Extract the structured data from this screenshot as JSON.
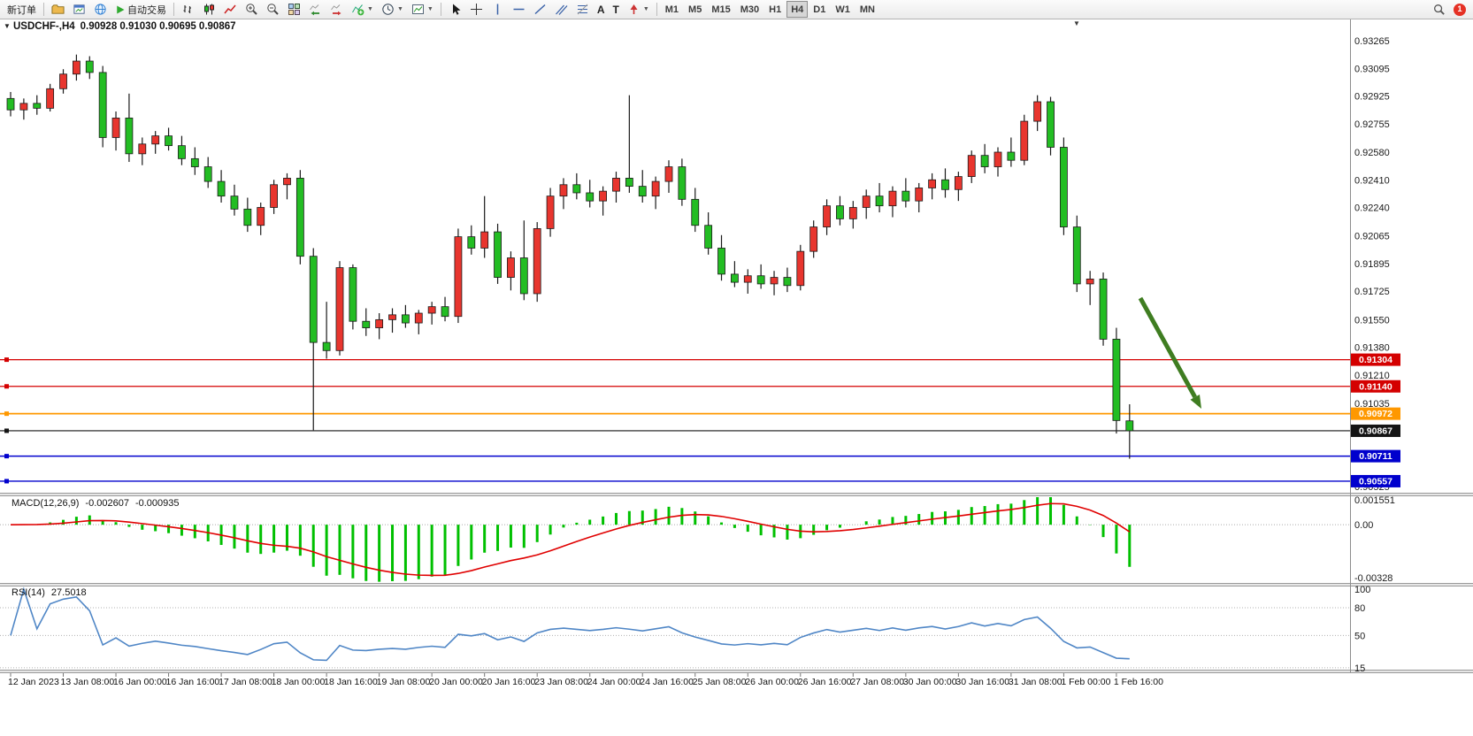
{
  "toolbar": {
    "new_order_label": "新订单",
    "autotrade_label": "自动交易",
    "text_tool_label": "A",
    "label_tool_label": "T",
    "timeframes": [
      "M1",
      "M5",
      "M15",
      "M30",
      "H1",
      "H4",
      "D1",
      "W1",
      "MN"
    ],
    "active_timeframe": "H4",
    "notification_count": "1"
  },
  "chart": {
    "symbol_period": "USDCHF-,H4",
    "ohlc_text": "0.90928 0.91030 0.90695 0.90867"
  },
  "chart_data": {
    "type": "candlestick",
    "symbol": "USDCHF-",
    "timeframe": "H4",
    "current_bar": {
      "open": 0.90928,
      "high": 0.9103,
      "low": 0.90695,
      "close": 0.90867
    },
    "colors": {
      "bull": "#e8352e",
      "bear": "#23bd23",
      "wick": "#1a1a1a"
    },
    "price_axis_ticks": [
      "0.93265",
      "0.93095",
      "0.92925",
      "0.92755",
      "0.92580",
      "0.92410",
      "0.92240",
      "0.92065",
      "0.91895",
      "0.91725",
      "0.91550",
      "0.91380",
      "0.91210",
      "0.91035",
      "0.90865",
      "0.90695",
      "0.90525"
    ],
    "time_label_step": 4,
    "time_labels": [
      "12 Jan 2023",
      "13 Jan 08:00",
      "16 Jan 00:00",
      "16 Jan 16:00",
      "17 Jan 08:00",
      "18 Jan 00:00",
      "18 Jan 16:00",
      "19 Jan 08:00",
      "20 Jan 00:00",
      "20 Jan 16:00",
      "23 Jan 08:00",
      "24 Jan 00:00",
      "24 Jan 16:00",
      "25 Jan 08:00",
      "26 Jan 00:00",
      "26 Jan 16:00",
      "27 Jan 08:00",
      "30 Jan 00:00",
      "30 Jan 16:00",
      "31 Jan 08:00",
      "1 Feb 00:00",
      "1 Feb 16:00"
    ],
    "candles": [
      [
        0.9291,
        0.9295,
        0.928,
        0.9284
      ],
      [
        0.9284,
        0.9291,
        0.9278,
        0.9288
      ],
      [
        0.9288,
        0.9293,
        0.9281,
        0.9285
      ],
      [
        0.9285,
        0.93,
        0.9283,
        0.9297
      ],
      [
        0.9297,
        0.9309,
        0.9294,
        0.9306
      ],
      [
        0.9306,
        0.9318,
        0.9302,
        0.9314
      ],
      [
        0.9314,
        0.9317,
        0.9303,
        0.9307
      ],
      [
        0.9307,
        0.9311,
        0.9261,
        0.9267
      ],
      [
        0.9267,
        0.9283,
        0.9259,
        0.9279
      ],
      [
        0.9279,
        0.9294,
        0.9252,
        0.9257
      ],
      [
        0.9257,
        0.9267,
        0.925,
        0.9263
      ],
      [
        0.9263,
        0.9271,
        0.9257,
        0.9268
      ],
      [
        0.9268,
        0.9273,
        0.9259,
        0.9262
      ],
      [
        0.9262,
        0.9268,
        0.925,
        0.9254
      ],
      [
        0.9254,
        0.9261,
        0.9244,
        0.9249
      ],
      [
        0.9249,
        0.9255,
        0.9236,
        0.924
      ],
      [
        0.924,
        0.9247,
        0.9227,
        0.9231
      ],
      [
        0.9231,
        0.9238,
        0.9219,
        0.9223
      ],
      [
        0.9223,
        0.923,
        0.9209,
        0.9213
      ],
      [
        0.9213,
        0.9227,
        0.9207,
        0.9224
      ],
      [
        0.9224,
        0.9241,
        0.922,
        0.9238
      ],
      [
        0.9238,
        0.9245,
        0.9229,
        0.9242
      ],
      [
        0.9242,
        0.9247,
        0.9189,
        0.9194
      ],
      [
        0.9194,
        0.9199,
        0.9087,
        0.9141
      ],
      [
        0.9141,
        0.9166,
        0.9131,
        0.9136
      ],
      [
        0.9136,
        0.9191,
        0.9133,
        0.9187
      ],
      [
        0.9187,
        0.9189,
        0.9149,
        0.9154
      ],
      [
        0.9154,
        0.9162,
        0.9145,
        0.915
      ],
      [
        0.915,
        0.9159,
        0.9143,
        0.9155
      ],
      [
        0.9155,
        0.9162,
        0.9147,
        0.9158
      ],
      [
        0.9158,
        0.9164,
        0.915,
        0.9153
      ],
      [
        0.9153,
        0.9161,
        0.9146,
        0.9159
      ],
      [
        0.9159,
        0.9166,
        0.9152,
        0.9163
      ],
      [
        0.9163,
        0.9169,
        0.9154,
        0.9157
      ],
      [
        0.9157,
        0.9211,
        0.9153,
        0.9206
      ],
      [
        0.9206,
        0.9213,
        0.9195,
        0.9199
      ],
      [
        0.9199,
        0.9231,
        0.9193,
        0.9209
      ],
      [
        0.9209,
        0.9214,
        0.9177,
        0.9181
      ],
      [
        0.9181,
        0.9197,
        0.9173,
        0.9193
      ],
      [
        0.9193,
        0.9216,
        0.9167,
        0.9171
      ],
      [
        0.9171,
        0.9215,
        0.9166,
        0.9211
      ],
      [
        0.9211,
        0.9236,
        0.9206,
        0.9231
      ],
      [
        0.9231,
        0.9242,
        0.9223,
        0.9238
      ],
      [
        0.9238,
        0.9245,
        0.9229,
        0.9233
      ],
      [
        0.9233,
        0.9241,
        0.9224,
        0.9228
      ],
      [
        0.9228,
        0.9237,
        0.9219,
        0.9234
      ],
      [
        0.9234,
        0.9246,
        0.9227,
        0.9242
      ],
      [
        0.9242,
        0.9293,
        0.9233,
        0.9237
      ],
      [
        0.9237,
        0.9247,
        0.9227,
        0.9231
      ],
      [
        0.9231,
        0.9243,
        0.9223,
        0.924
      ],
      [
        0.924,
        0.9253,
        0.9233,
        0.9249
      ],
      [
        0.9249,
        0.9254,
        0.9225,
        0.9229
      ],
      [
        0.9229,
        0.9236,
        0.9209,
        0.9213
      ],
      [
        0.9213,
        0.9221,
        0.9195,
        0.9199
      ],
      [
        0.9199,
        0.9207,
        0.9179,
        0.9183
      ],
      [
        0.9183,
        0.9191,
        0.9175,
        0.9178
      ],
      [
        0.9178,
        0.9186,
        0.9171,
        0.9182
      ],
      [
        0.9182,
        0.9189,
        0.9174,
        0.9177
      ],
      [
        0.9177,
        0.9185,
        0.917,
        0.9181
      ],
      [
        0.9181,
        0.9187,
        0.9172,
        0.9176
      ],
      [
        0.9176,
        0.9201,
        0.9173,
        0.9197
      ],
      [
        0.9197,
        0.9216,
        0.9193,
        0.9212
      ],
      [
        0.9212,
        0.9229,
        0.9207,
        0.9225
      ],
      [
        0.9225,
        0.9231,
        0.9213,
        0.9217
      ],
      [
        0.9217,
        0.9228,
        0.9211,
        0.9224
      ],
      [
        0.9224,
        0.9235,
        0.9217,
        0.9231
      ],
      [
        0.9231,
        0.9239,
        0.9221,
        0.9225
      ],
      [
        0.9225,
        0.9237,
        0.9218,
        0.9234
      ],
      [
        0.9234,
        0.9242,
        0.9224,
        0.9228
      ],
      [
        0.9228,
        0.9239,
        0.9221,
        0.9236
      ],
      [
        0.9236,
        0.9245,
        0.9229,
        0.9241
      ],
      [
        0.9241,
        0.9248,
        0.923,
        0.9235
      ],
      [
        0.9235,
        0.9246,
        0.9228,
        0.9243
      ],
      [
        0.9243,
        0.9259,
        0.9239,
        0.9256
      ],
      [
        0.9256,
        0.9263,
        0.9245,
        0.9249
      ],
      [
        0.9249,
        0.9261,
        0.9243,
        0.9258
      ],
      [
        0.9258,
        0.9267,
        0.9249,
        0.9253
      ],
      [
        0.9253,
        0.9281,
        0.925,
        0.9277
      ],
      [
        0.9277,
        0.9293,
        0.9271,
        0.9289
      ],
      [
        0.9289,
        0.9292,
        0.9256,
        0.9261
      ],
      [
        0.9261,
        0.9267,
        0.9207,
        0.9212
      ],
      [
        0.9212,
        0.9219,
        0.9172,
        0.9177
      ],
      [
        0.9177,
        0.9185,
        0.9164,
        0.918
      ],
      [
        0.918,
        0.9184,
        0.9139,
        0.9143
      ],
      [
        0.9143,
        0.915,
        0.9085,
        0.9093
      ],
      [
        0.90928,
        0.9103,
        0.90695,
        0.90867
      ]
    ],
    "horizontal_lines": [
      {
        "price": 0.91304,
        "label": "0.91304",
        "color": "#d40000",
        "width": 1.2
      },
      {
        "price": 0.9114,
        "label": "0.91140",
        "color": "#d40000",
        "width": 1.2
      },
      {
        "price": 0.90972,
        "label": "0.90972",
        "color": "#ff9800",
        "width": 1.8
      },
      {
        "price": 0.90867,
        "label": "0.90867",
        "color": "#141414",
        "width": 1.2
      },
      {
        "price": 0.90711,
        "label": "0.90711",
        "color": "#0000cd",
        "width": 1.4
      },
      {
        "price": 0.90557,
        "label": "0.90557",
        "color": "#0000cd",
        "width": 1.4
      }
    ],
    "macd": {
      "name": "MACD(12,26,9)",
      "main_value": "-0.002607",
      "signal_value": "-0.000935",
      "params": [
        12,
        26,
        9
      ],
      "axis_labels": [
        "0.001551",
        "0.00",
        "-0.00328"
      ],
      "histogram_color": "#00c000",
      "signal_color": "#e00000"
    },
    "rsi": {
      "name": "RSI(14)",
      "value": "27.5018",
      "period": 14,
      "axis_labels": [
        "100",
        "80",
        "50",
        "15"
      ],
      "levels": [
        80,
        50,
        15
      ],
      "color": "#4f86c6"
    },
    "annotation_arrow": {
      "from": [
        1289,
        337
      ],
      "to": [
        1358,
        462
      ],
      "color": "#3f7d21"
    }
  }
}
